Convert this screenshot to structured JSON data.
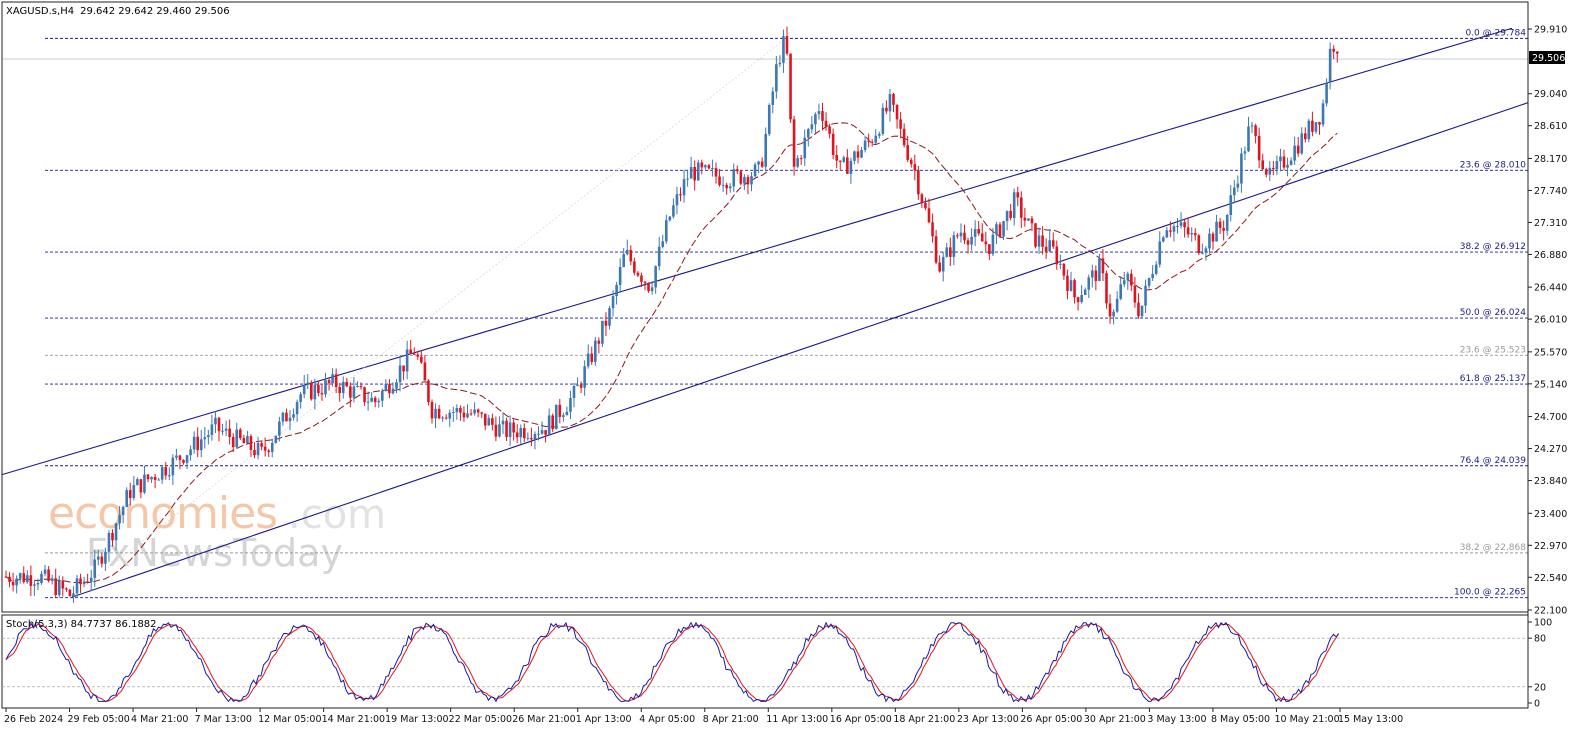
{
  "header": {
    "symbol": "XAGUSD.s,H4",
    "ohlc": "29.642 29.642 29.460 29.506"
  },
  "watermark": {
    "line1_main": "economies",
    "line1_suffix": ".com",
    "line2": "FxNewsToday"
  },
  "price_axis": {
    "ticks": [
      "29.910",
      "29.040",
      "28.610",
      "28.170",
      "27.740",
      "27.310",
      "26.880",
      "26.440",
      "26.010",
      "25.570",
      "25.140",
      "24.700",
      "24.270",
      "23.840",
      "23.400",
      "22.970",
      "22.540",
      "22.100"
    ],
    "current_price_label": "29.506"
  },
  "fib_levels": [
    {
      "label": "0.0 @ 29.784",
      "value": 29.784,
      "style": "blue"
    },
    {
      "label": "23.6 @ 28.010",
      "value": 28.01,
      "style": "blue"
    },
    {
      "label": "38.2 @ 26.912",
      "value": 26.912,
      "style": "blue"
    },
    {
      "label": "50.0 @ 26.024",
      "value": 26.024,
      "style": "blue"
    },
    {
      "label": "23.6 @ 25.523",
      "value": 25.523,
      "style": "gray"
    },
    {
      "label": "61.8 @ 25.137",
      "value": 25.137,
      "style": "blue"
    },
    {
      "label": "76.4 @ 24.039",
      "value": 24.039,
      "style": "blue"
    },
    {
      "label": "38.2 @ 22.868",
      "value": 22.868,
      "style": "gray"
    },
    {
      "label": "100.0 @ 22.265",
      "value": 22.265,
      "style": "blue"
    }
  ],
  "time_axis": {
    "labels": [
      "26 Feb 2024",
      "29 Feb 05:00",
      "4 Mar 21:00",
      "7 Mar 13:00",
      "12 Mar 05:00",
      "14 Mar 21:00",
      "19 Mar 13:00",
      "22 Mar 05:00",
      "26 Mar 21:00",
      "1 Apr 13:00",
      "4 Apr 05:00",
      "8 Apr 21:00",
      "11 Apr 13:00",
      "16 Apr 05:00",
      "18 Apr 21:00",
      "23 Apr 13:00",
      "26 Apr 05:00",
      "30 Apr 21:00",
      "3 May 13:00",
      "8 May 05:00",
      "10 May 21:00",
      "15 May 13:00"
    ]
  },
  "stoch": {
    "label": "Stoch(5,3,3) 84.7737 86.1882",
    "axis_ticks": [
      "100",
      "80",
      "20",
      "0"
    ]
  },
  "colors": {
    "bull": "#3b78b4",
    "bear": "#e0141e",
    "channel": "#1a1a8c",
    "ma": "#8b1a1a",
    "stoch_main": "#1a1aa0",
    "stoch_signal": "#e0141e"
  },
  "chart_data": {
    "type": "candlestick",
    "symbol": "XAGUSD",
    "timeframe": "H4",
    "ylim": [
      22.1,
      29.91
    ],
    "close_path": [
      [
        "26 Feb 2024",
        22.58
      ],
      [
        "29 Feb 05:00",
        22.45
      ],
      [
        "4 Mar 21:00",
        23.85
      ],
      [
        "7 Mar 13:00",
        24.35
      ],
      [
        "12 Mar 05:00",
        24.25
      ],
      [
        "14 Mar 21:00",
        25.05
      ],
      [
        "19 Mar 13:00",
        24.85
      ],
      [
        "22 Mar 05:00",
        24.75
      ],
      [
        "26 Mar 21:00",
        24.55
      ],
      [
        "1 Apr 13:00",
        25.35
      ],
      [
        "4 Apr 05:00",
        26.85
      ],
      [
        "8 Apr 21:00",
        27.95
      ],
      [
        "11 Apr 13:00",
        29.784
      ],
      [
        "16 Apr 05:00",
        28.25
      ],
      [
        "18 Apr 21:00",
        28.35
      ],
      [
        "23 Apr 13:00",
        27.15
      ],
      [
        "26 Apr 05:00",
        27.25
      ],
      [
        "30 Apr 21:00",
        26.25
      ],
      [
        "3 May 13:00",
        27.1
      ],
      [
        "8 May 05:00",
        27.05
      ],
      [
        "10 May 21:00",
        28.1
      ],
      [
        "15 May 13:00",
        29.7
      ]
    ],
    "current_price": 29.506,
    "indicators": {
      "moving_average": "dashed, dark red",
      "stochastic": {
        "params": "5,3,3",
        "main": 84.7737,
        "signal": 86.1882,
        "levels": [
          20,
          80
        ]
      }
    }
  }
}
